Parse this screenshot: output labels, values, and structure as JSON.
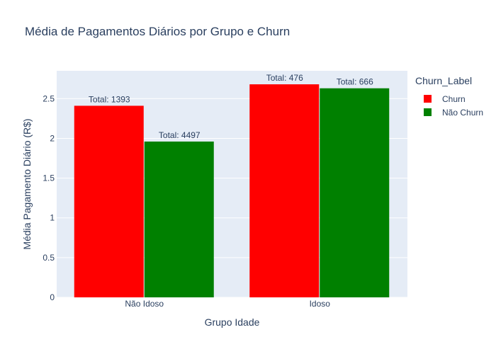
{
  "chart_data": {
    "type": "bar",
    "title": "Média de Pagamentos Diários por Grupo e Churn",
    "xlabel": "Grupo Idade",
    "ylabel": "Média Pagamento Diário (R$)",
    "categories": [
      "Não Idoso",
      "Idoso"
    ],
    "ylim": [
      0,
      2.85
    ],
    "yticks": [
      0,
      0.5,
      1,
      1.5,
      2,
      2.5
    ],
    "ytick_labels": [
      "0",
      "0.5",
      "1",
      "1.5",
      "2",
      "2.5"
    ],
    "grid": true,
    "legend": {
      "title": "Churn_Label",
      "position": "top-right outside"
    },
    "series": [
      {
        "name": "Churn",
        "color": "#ff0000",
        "values": [
          2.41,
          2.68
        ],
        "labels": [
          "Total: 1393",
          "Total: 476"
        ]
      },
      {
        "name": "Não Churn",
        "color": "#008000",
        "values": [
          1.96,
          2.63
        ],
        "labels": [
          "Total: 4497",
          "Total: 666"
        ]
      }
    ],
    "plot_background": "#e5ecf6",
    "text_color": "#2a3f5f"
  }
}
